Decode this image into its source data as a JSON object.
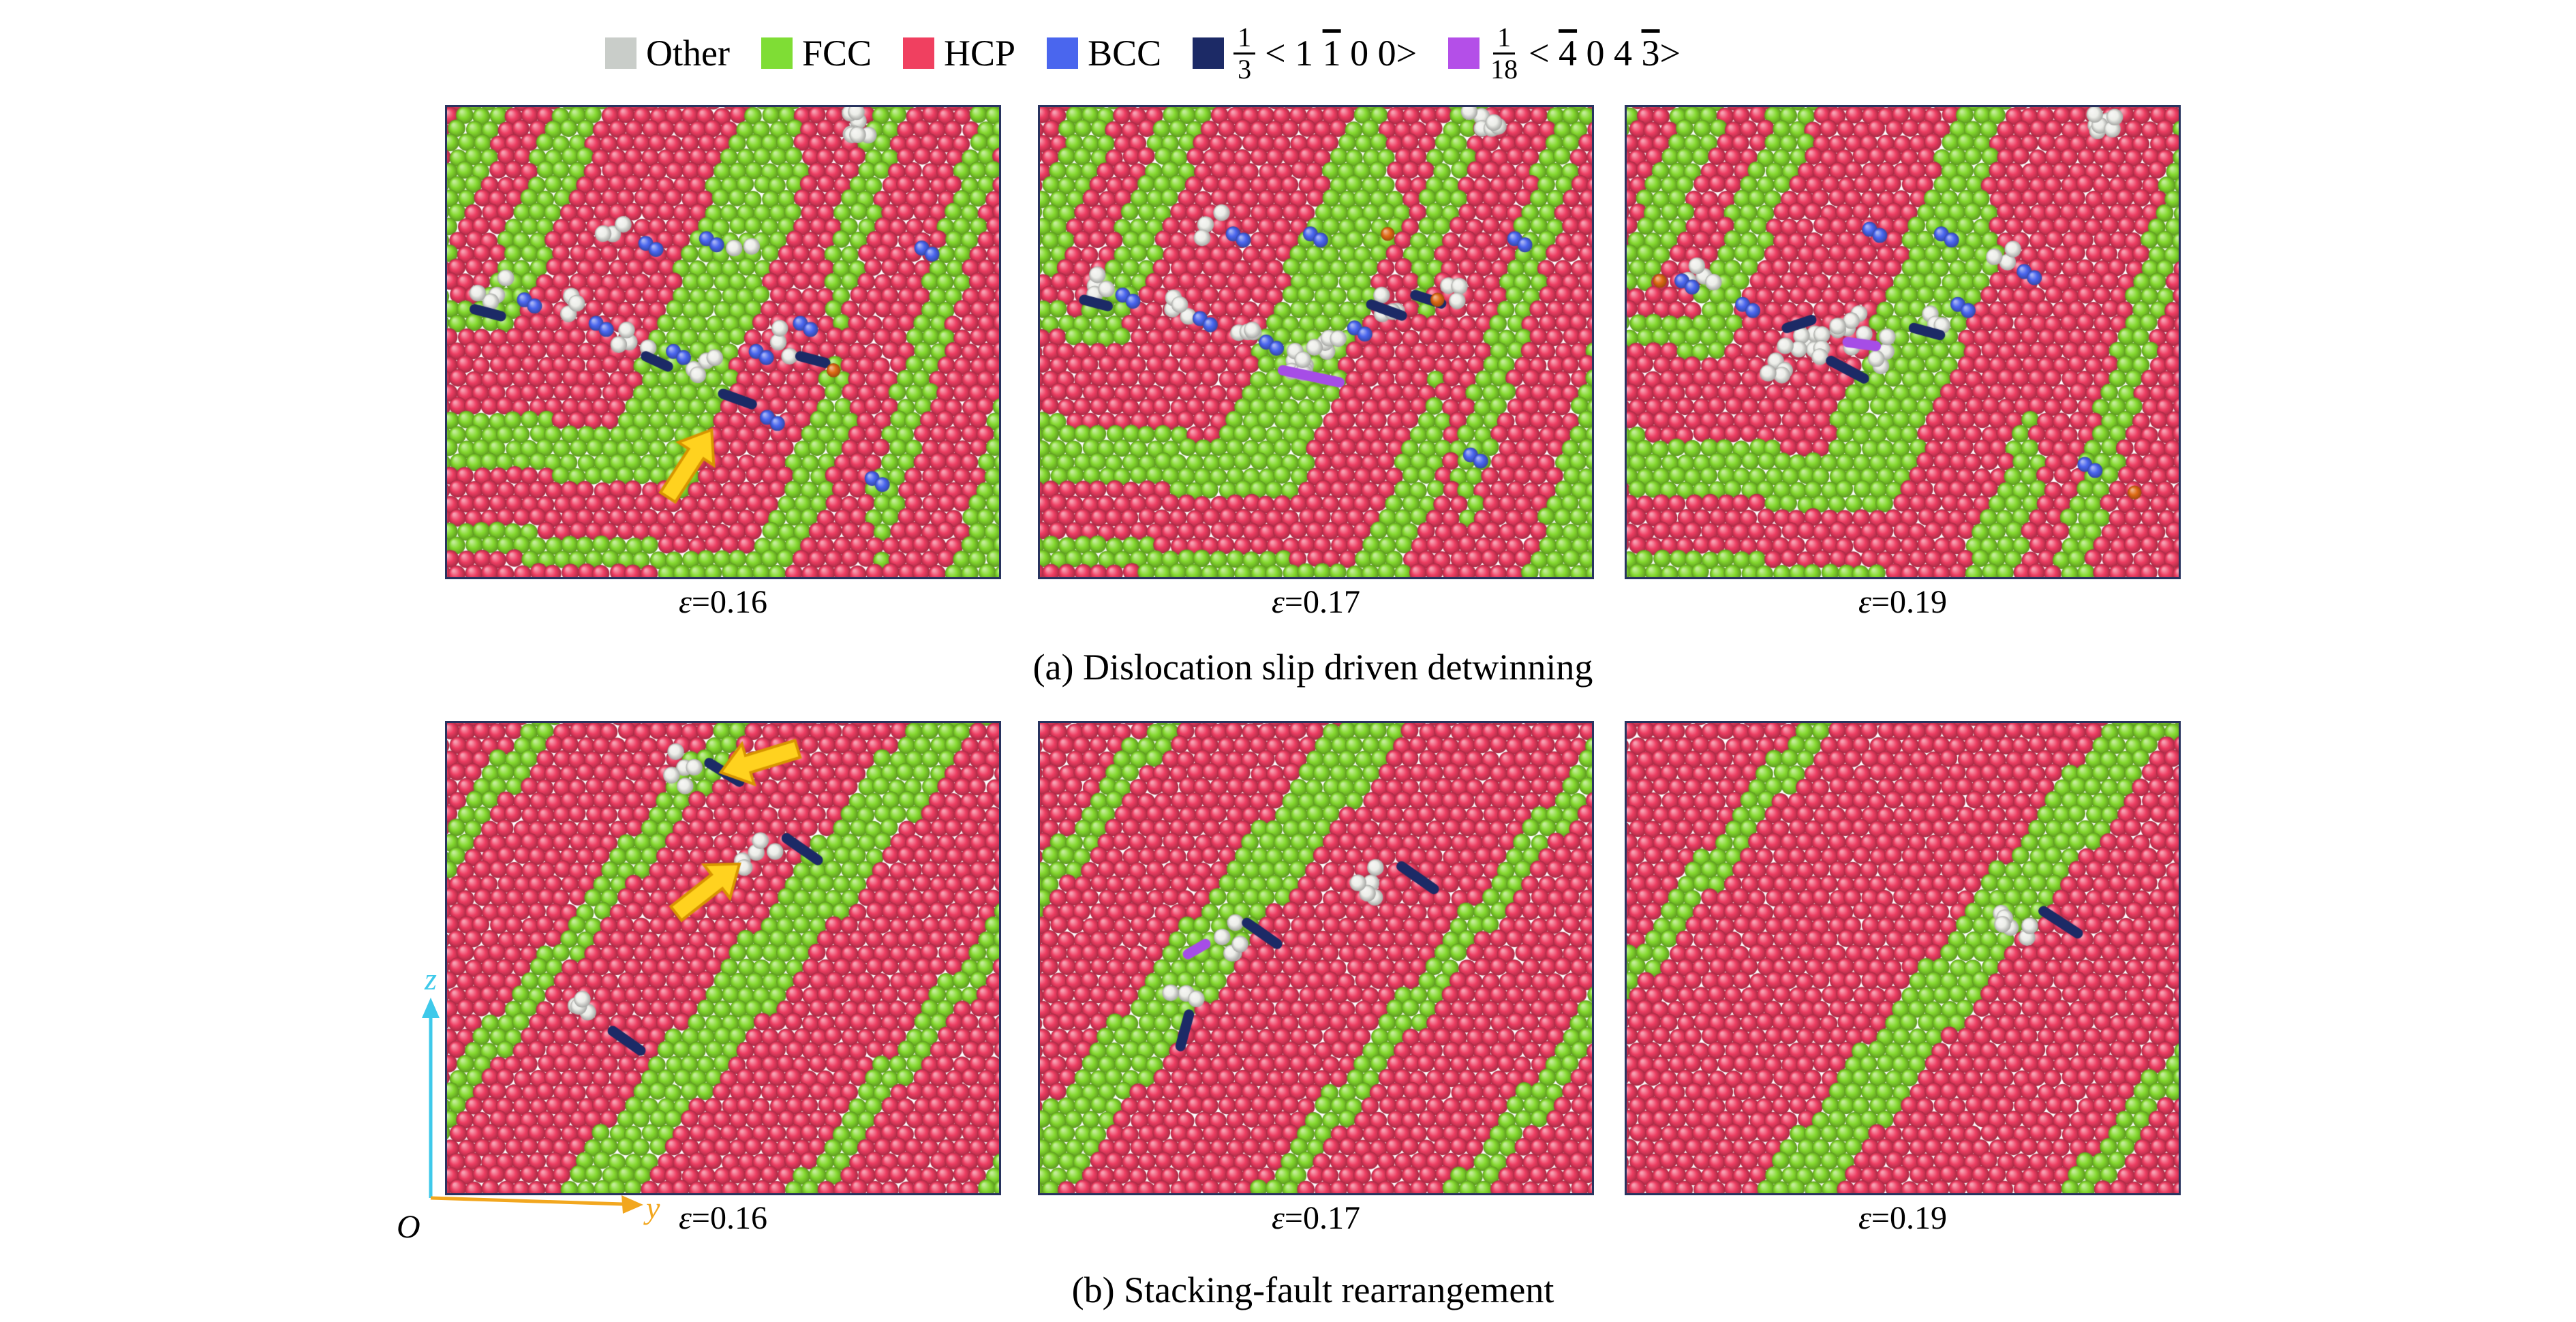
{
  "legend": {
    "items": [
      {
        "label": "Other",
        "color": "#c9cdc9"
      },
      {
        "label": "FCC",
        "color": "#7fdd35"
      },
      {
        "label": "HCP",
        "color": "#f04060"
      },
      {
        "label": "BCC",
        "color": "#4a66ee"
      },
      {
        "fraction": {
          "num": "1",
          "den": "3"
        },
        "vector": [
          [
            "< 1 ",
            false
          ],
          [
            "1",
            true
          ],
          [
            " 0 0>",
            false
          ]
        ],
        "color": "#1c2a66"
      },
      {
        "fraction": {
          "num": "1",
          "den": "18"
        },
        "vector": [
          [
            "< ",
            false
          ],
          [
            "4",
            true
          ],
          [
            " 0 4 ",
            false
          ],
          [
            "3",
            true
          ],
          [
            ">",
            false
          ]
        ],
        "color": "#b44fe8"
      }
    ]
  },
  "atom_colors": {
    "fcc": "#84d92e",
    "hcp": "#ee3d62",
    "bcc": "#4a66ee",
    "other": "#edeee9",
    "navy": "#1c2a66",
    "purple": "#a64de6",
    "orange": "#e06a14"
  },
  "arrow_color": "#ffd21f",
  "rows": [
    {
      "caption": "(a) Dislocation slip driven detwinning",
      "panels": [
        {
          "id": "a1",
          "strain": {
            "symbol": "ε",
            "value": "=0.16"
          },
          "render": {
            "type": "chevron",
            "seed": 11,
            "period": 50,
            "offset": 0,
            "y0": 0.34,
            "m": 0.94,
            "a1": 0.29,
            "a2": -1.2,
            "pattern": "GPGGPPGPPGGPPPGP",
            "right": {
              "x0": 0.62,
              "m": 0.2,
              "n": [
                0.962,
                0.275
              ],
              "period": 50,
              "offset": 0,
              "pattern": "PGPPGGPPPGPPGP"
            }
          },
          "features": [
            [
              "w",
              0.745,
              0.03,
              8
            ],
            [
              "w",
              0.09,
              0.4,
              4
            ],
            [
              "w",
              0.22,
              0.44,
              3
            ],
            [
              "w",
              0.33,
              0.5,
              4
            ],
            [
              "w",
              0.47,
              0.54,
              4
            ],
            [
              "w",
              0.6,
              0.5,
              3
            ],
            [
              "w",
              0.3,
              0.27,
              3
            ],
            [
              "w",
              0.52,
              0.3,
              2
            ],
            [
              "n",
              0.05,
              0.43,
              15,
              40
            ],
            [
              "n",
              0.5,
              0.61,
              20,
              45
            ],
            [
              "n",
              0.64,
              0.53,
              15,
              38
            ],
            [
              "n",
              0.36,
              0.53,
              25,
              36
            ],
            [
              "b",
              0.14,
              0.41
            ],
            [
              "b",
              0.27,
              0.46
            ],
            [
              "b",
              0.41,
              0.52
            ],
            [
              "b",
              0.56,
              0.52
            ],
            [
              "b",
              0.64,
              0.46
            ],
            [
              "b",
              0.36,
              0.29
            ],
            [
              "b",
              0.58,
              0.66
            ],
            [
              "b",
              0.77,
              0.79
            ],
            [
              "b",
              0.47,
              0.28
            ],
            [
              "b",
              0.86,
              0.3
            ],
            [
              "o",
              0.7,
              0.56
            ],
            [
              "arrow",
              0.4,
              0.83,
              -57
            ]
          ]
        },
        {
          "id": "a2",
          "strain": {
            "symbol": "ε",
            "value": "=0.17"
          },
          "render": {
            "type": "chevron",
            "seed": 22,
            "period": 50,
            "offset": 18,
            "y0": 0.34,
            "m": 0.94,
            "a1": 0.29,
            "a2": -1.2,
            "pattern": "GPGGPPGPPGGPPPGP",
            "right": {
              "x0": 0.62,
              "m": 0.2,
              "n": [
                0.962,
                0.275
              ],
              "period": 50,
              "offset": 22,
              "pattern": "PGPPGGPPPGPPGP"
            }
          },
          "features": [
            [
              "w",
              0.8,
              0.02,
              7
            ],
            [
              "w",
              0.1,
              0.38,
              4
            ],
            [
              "w",
              0.24,
              0.43,
              4
            ],
            [
              "w",
              0.36,
              0.48,
              4
            ],
            [
              "w",
              0.46,
              0.54,
              8
            ],
            [
              "w",
              0.52,
              0.52,
              5
            ],
            [
              "w",
              0.62,
              0.44,
              4
            ],
            [
              "w",
              0.3,
              0.25,
              3
            ],
            [
              "w",
              0.74,
              0.38,
              3
            ],
            [
              "p",
              0.44,
              0.56,
              12,
              85
            ],
            [
              "n",
              0.6,
              0.42,
              20,
              48
            ],
            [
              "n",
              0.08,
              0.41,
              15,
              36
            ],
            [
              "n",
              0.68,
              0.4,
              18,
              40
            ],
            [
              "b",
              0.15,
              0.4
            ],
            [
              "b",
              0.29,
              0.45
            ],
            [
              "b",
              0.41,
              0.5
            ],
            [
              "b",
              0.57,
              0.47
            ],
            [
              "b",
              0.35,
              0.27
            ],
            [
              "b",
              0.49,
              0.27
            ],
            [
              "b",
              0.78,
              0.74
            ],
            [
              "b",
              0.86,
              0.28
            ],
            [
              "o",
              0.72,
              0.41
            ],
            [
              "o",
              0.63,
              0.27
            ]
          ]
        },
        {
          "id": "a3",
          "strain": {
            "symbol": "ε",
            "value": "=0.19"
          },
          "render": {
            "type": "chevron",
            "seed": 33,
            "period": 50,
            "offset": 40,
            "y0": 0.34,
            "m": 0.94,
            "a1": 0.29,
            "a2": -1.2,
            "pattern": "GPGGPPGPPGGPPPGP",
            "right": {
              "x0": 0.62,
              "m": 0.2,
              "n": [
                0.962,
                0.275
              ],
              "period": 50,
              "offset": 12,
              "pattern": "PPGPPPGPPGGPPP"
            }
          },
          "features": [
            [
              "w",
              0.87,
              0.03,
              8
            ],
            [
              "w",
              0.33,
              0.5,
              10
            ],
            [
              "w",
              0.4,
              0.47,
              7
            ],
            [
              "w",
              0.27,
              0.54,
              5
            ],
            [
              "w",
              0.14,
              0.36,
              4
            ],
            [
              "w",
              0.55,
              0.44,
              3
            ],
            [
              "w",
              0.69,
              0.33,
              3
            ],
            [
              "w",
              0.47,
              0.52,
              4
            ],
            [
              "n",
              0.37,
              0.54,
              28,
              55
            ],
            [
              "n",
              0.29,
              0.47,
              -18,
              38
            ],
            [
              "n",
              0.52,
              0.47,
              15,
              40
            ],
            [
              "p",
              0.4,
              0.5,
              8,
              42
            ],
            [
              "b",
              0.1,
              0.37
            ],
            [
              "b",
              0.21,
              0.42
            ],
            [
              "b",
              0.6,
              0.42
            ],
            [
              "b",
              0.72,
              0.35
            ],
            [
              "b",
              0.44,
              0.26
            ],
            [
              "b",
              0.57,
              0.27
            ],
            [
              "b",
              0.83,
              0.76
            ],
            [
              "o",
              0.06,
              0.37
            ],
            [
              "o",
              0.92,
              0.82
            ]
          ]
        }
      ]
    },
    {
      "caption": "(b) Stacking-fault rearrangement",
      "panels": [
        {
          "id": "b1",
          "strain": {
            "symbol": "ε",
            "value": "=0.16"
          },
          "render": {
            "type": "diagonal",
            "seed": 44,
            "period": 45,
            "offset": 0,
            "n": [
              0.8,
              0.6
            ],
            "pattern": "PPGPPPPGPPPPGGPPPPGPPPPG"
          },
          "features": [
            [
              "w",
              0.43,
              0.095,
              5
            ],
            [
              "w",
              0.56,
              0.275,
              5
            ],
            [
              "w",
              0.255,
              0.615,
              4
            ],
            [
              "n",
              0.475,
              0.085,
              32,
              52
            ],
            [
              "n",
              0.615,
              0.245,
              35,
              56
            ],
            [
              "n",
              0.3,
              0.655,
              35,
              50
            ],
            [
              "arrow",
              0.635,
              0.055,
              163
            ],
            [
              "arrow",
              0.415,
              0.405,
              -38
            ]
          ]
        },
        {
          "id": "b2",
          "strain": {
            "symbol": "ε",
            "value": "=0.17"
          },
          "render": {
            "type": "diagonal",
            "seed": 55,
            "period": 45,
            "offset": 10,
            "n": [
              0.8,
              0.6
            ],
            "pattern": "PPPGPPPPGGPPPPPGPPPPGPPP"
          },
          "features": [
            [
              "w",
              0.33,
              0.455,
              5
            ],
            [
              "w",
              0.6,
              0.34,
              5
            ],
            [
              "w",
              0.265,
              0.575,
              3
            ],
            [
              "n",
              0.375,
              0.425,
              35,
              54
            ],
            [
              "n",
              0.655,
              0.305,
              35,
              58
            ],
            [
              "n",
              0.27,
              0.62,
              105,
              48
            ],
            [
              "p",
              0.3,
              0.47,
              150,
              30
            ]
          ]
        },
        {
          "id": "b3",
          "strain": {
            "symbol": "ε",
            "value": "=0.19"
          },
          "render": {
            "type": "diagonal",
            "seed": 66,
            "period": 45,
            "offset": 22,
            "n": [
              0.8,
              0.6
            ],
            "pattern": "PPPPPGPPPPPPPGGPPPPPPGPP"
          },
          "features": [
            [
              "w",
              0.695,
              0.435,
              6
            ],
            [
              "n",
              0.755,
              0.4,
              33,
              60
            ]
          ]
        }
      ]
    }
  ],
  "axes": {
    "z": "z",
    "y": "y",
    "origin": "O",
    "z_color": "#3ec9ea",
    "y_color": "#f2a71f"
  }
}
